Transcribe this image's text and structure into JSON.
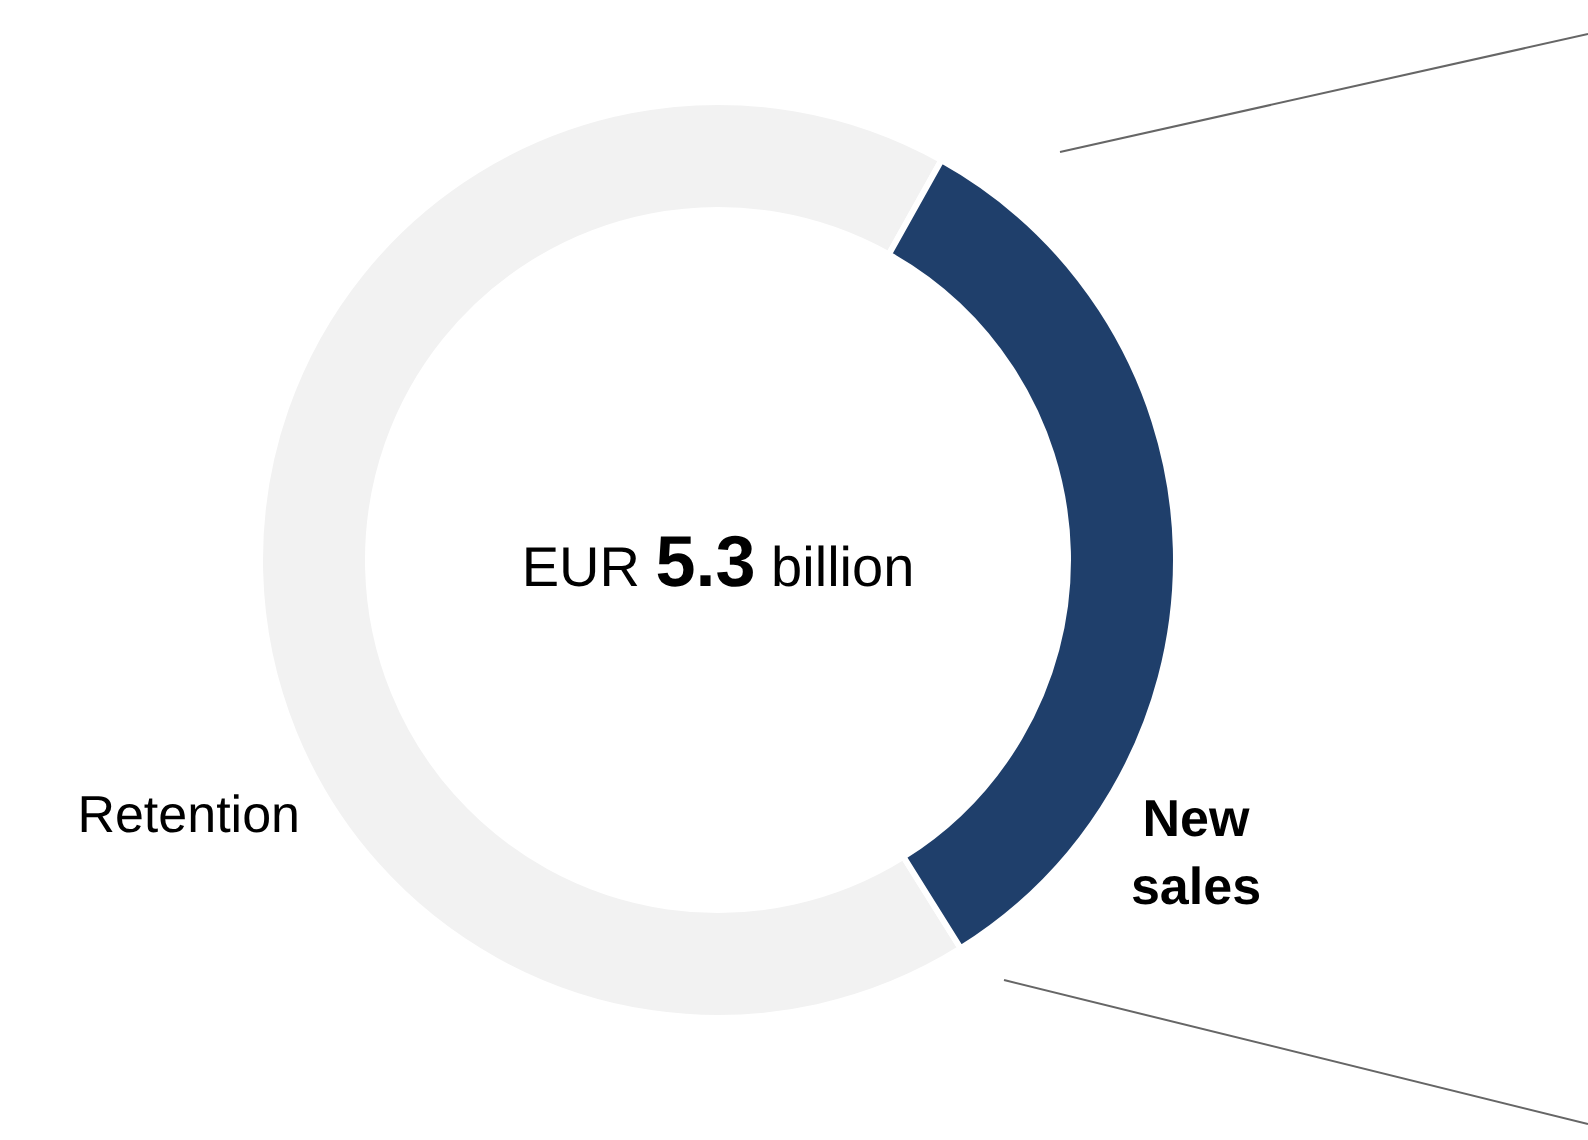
{
  "chart_data": {
    "type": "donut",
    "categories": [
      "Retention",
      "New sales"
    ],
    "values": [
      67,
      33
    ],
    "colors": [
      "#f2f2f2",
      "#1f3f6b"
    ],
    "annotations": [
      "EUR 5.3 billion"
    ]
  }
}
